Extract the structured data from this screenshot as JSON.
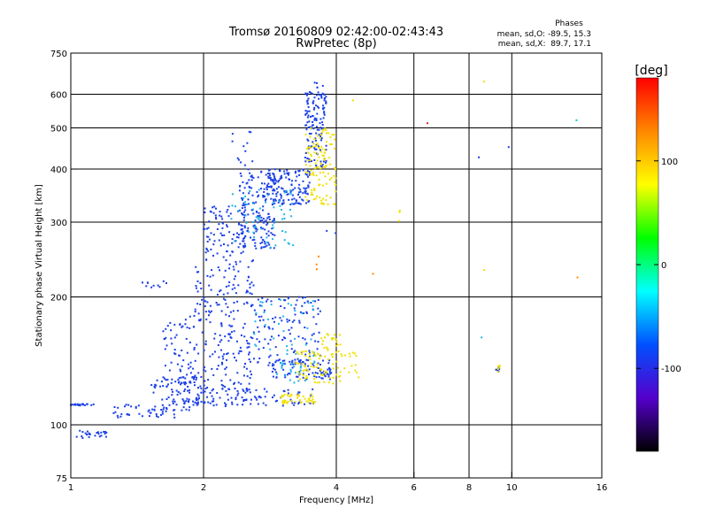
{
  "chart_data": {
    "type": "scatter",
    "title": "Tromsø 20160809 02:42:00-02:43:43",
    "subtitle": "RwPretec (8p)",
    "xlabel": "Frequency [MHz]",
    "ylabel": "Stationary phase Virtual Height [km]",
    "x_scale": "log",
    "y_scale": "log",
    "xlim": [
      1,
      16
    ],
    "ylim": [
      75,
      750
    ],
    "x_ticks": [
      1,
      2,
      4,
      6,
      8,
      10,
      16
    ],
    "y_ticks": [
      75,
      100,
      200,
      300,
      400,
      500,
      600,
      750
    ],
    "x_gridlines": [
      1,
      2,
      4,
      6,
      8,
      10,
      16
    ],
    "y_gridlines": [
      100,
      200,
      300,
      400,
      500,
      600
    ],
    "grid": true,
    "phase_stats": {
      "heading": "Phases",
      "line_o": "mean, sd,O: -89.5, 15.3",
      "line_x": "mean, sd,X:  89.7, 17.1"
    },
    "colorbar": {
      "label": "[deg]",
      "range": [
        -180,
        180
      ],
      "ticks": [
        100,
        0,
        -100
      ],
      "colors": [
        "#ff0000",
        "#ff8800",
        "#ffff00",
        "#00ff00",
        "#00ffff",
        "#0050ff",
        "#5500cc",
        "#000000"
      ]
    },
    "series": [
      {
        "mode": "O",
        "color": "#1b3fe6",
        "clusters": [
          {
            "x": [
              1.0,
              1.15
            ],
            "y": [
              111,
              112
            ],
            "n": 20
          },
          {
            "x": [
              1.03,
              1.22
            ],
            "y": [
              93,
              97
            ],
            "n": 25
          },
          {
            "x": [
              1.25,
              1.75
            ],
            "y": [
              104,
              112
            ],
            "n": 40
          },
          {
            "x": [
              1.5,
              2.0
            ],
            "y": [
              108,
              130
            ],
            "n": 80
          },
          {
            "x": [
              1.8,
              3.6
            ],
            "y": [
              110,
              122
            ],
            "n": 110
          },
          {
            "x": [
              1.45,
              1.65
            ],
            "y": [
              210,
              218
            ],
            "n": 10
          },
          {
            "x": [
              1.6,
              1.9
            ],
            "y": [
              125,
              180
            ],
            "n": 60
          },
          {
            "x": [
              1.9,
              2.6
            ],
            "y": [
              120,
              250
            ],
            "n": 220
          },
          {
            "x": [
              2.0,
              2.5
            ],
            "y": [
              250,
              330
            ],
            "n": 90
          },
          {
            "x": [
              2.4,
              2.9
            ],
            "y": [
              260,
              400
            ],
            "n": 170
          },
          {
            "x": [
              2.8,
              3.5
            ],
            "y": [
              330,
              400
            ],
            "n": 140
          },
          {
            "x": [
              3.4,
              3.8
            ],
            "y": [
              400,
              640
            ],
            "n": 140
          },
          {
            "x": [
              2.6,
              3.7
            ],
            "y": [
              140,
              200
            ],
            "n": 120
          },
          {
            "x": [
              2.8,
              3.9
            ],
            "y": [
              128,
              142
            ],
            "n": 90
          },
          {
            "x": [
              2.3,
              2.6
            ],
            "y": [
              400,
              500
            ],
            "n": 12
          },
          {
            "x": [
              3.8,
              4.0
            ],
            "y": [
              270,
              290
            ],
            "n": 2
          },
          {
            "x": [
              9.2,
              9.4
            ],
            "y": [
              133,
              138
            ],
            "n": 10
          },
          {
            "x": [
              8.4,
              8.6
            ],
            "y": [
              420,
              430
            ],
            "n": 1
          },
          {
            "x": [
              9.8,
              9.9
            ],
            "y": [
              450,
              455
            ],
            "n": 1
          }
        ]
      },
      {
        "mode": "mixed",
        "color": "#1fb6e8",
        "clusters": [
          {
            "x": [
              2.3,
              3.2
            ],
            "y": [
              260,
              360
            ],
            "n": 60
          },
          {
            "x": [
              2.6,
              3.6
            ],
            "y": [
              140,
              200
            ],
            "n": 40
          },
          {
            "x": [
              2.9,
              3.4
            ],
            "y": [
              125,
              140
            ],
            "n": 20
          },
          {
            "x": [
              8.5,
              8.6
            ],
            "y": [
              160,
              165
            ],
            "n": 1
          }
        ]
      },
      {
        "mode": "X",
        "color": "#f0e000",
        "clusters": [
          {
            "x": [
              3.4,
              4.0
            ],
            "y": [
              330,
              500
            ],
            "n": 120
          },
          {
            "x": [
              3.0,
              3.6
            ],
            "y": [
              112,
              118
            ],
            "n": 45
          },
          {
            "x": [
              3.2,
              4.5
            ],
            "y": [
              125,
              150
            ],
            "n": 90
          },
          {
            "x": [
              3.7,
              4.1
            ],
            "y": [
              150,
              165
            ],
            "n": 20
          },
          {
            "x": [
              4.3,
              4.4
            ],
            "y": [
              580,
              590
            ],
            "n": 1
          },
          {
            "x": [
              8.6,
              8.7
            ],
            "y": [
              640,
              650
            ],
            "n": 1
          },
          {
            "x": [
              5.5,
              5.6
            ],
            "y": [
              300,
              360
            ],
            "n": 3
          },
          {
            "x": [
              9.3,
              9.4
            ],
            "y": [
              133,
              138
            ],
            "n": 6
          },
          {
            "x": [
              8.6,
              8.7
            ],
            "y": [
              230,
              232
            ],
            "n": 1
          }
        ]
      },
      {
        "mode": "other",
        "color": "#ff8c00",
        "clusters": [
          {
            "x": [
              3.6,
              3.7
            ],
            "y": [
              230,
              250
            ],
            "n": 3
          },
          {
            "x": [
              4.8,
              4.9
            ],
            "y": [
              225,
              228
            ],
            "n": 1
          },
          {
            "x": [
              14.0,
              14.1
            ],
            "y": [
              222,
              224
            ],
            "n": 1
          }
        ]
      },
      {
        "mode": "other",
        "color": "#e52222",
        "clusters": [
          {
            "x": [
              6.4,
              6.5
            ],
            "y": [
              512,
              515
            ],
            "n": 1
          }
        ]
      },
      {
        "mode": "other",
        "color": "#00c8c8",
        "clusters": [
          {
            "x": [
              14.0,
              14.1
            ],
            "y": [
              518,
              522
            ],
            "n": 1
          }
        ]
      }
    ]
  }
}
